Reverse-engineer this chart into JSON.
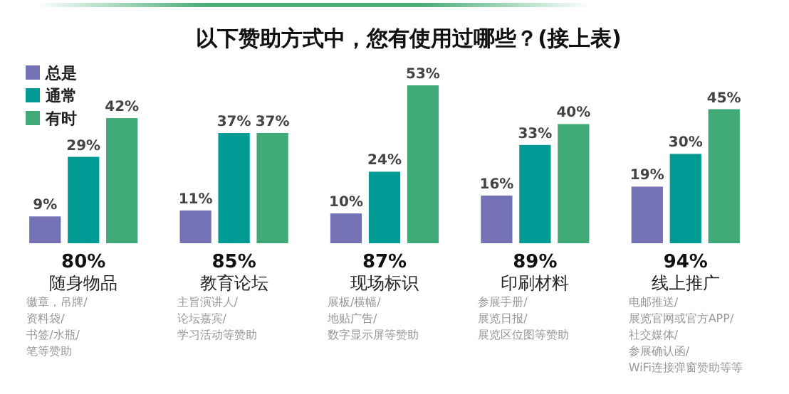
{
  "chart_data": {
    "type": "bar",
    "title": "以下赞助方式中，您有使用过哪些？(接上表)",
    "categories": [
      "随身物品",
      "教育论坛",
      "现场标识",
      "印刷材料",
      "线上推广"
    ],
    "series": [
      {
        "name": "总是",
        "color": "#7472b5",
        "values": [
          9,
          11,
          10,
          16,
          19
        ],
        "value_labels": [
          "9%",
          "11%",
          "10%",
          "16%",
          "19%"
        ]
      },
      {
        "name": "通常",
        "color": "#009b95",
        "values": [
          29,
          37,
          24,
          33,
          30
        ],
        "value_labels": [
          "29%",
          "37%",
          "24%",
          "33%",
          "30%"
        ]
      },
      {
        "name": "有时",
        "color": "#3fa977",
        "values": [
          42,
          37,
          53,
          40,
          45
        ],
        "value_labels": [
          "42%",
          "37%",
          "53%",
          "40%",
          "45%"
        ]
      }
    ],
    "legend": "top left",
    "annotations": [
      "80%",
      "85%",
      "87%",
      "89%",
      "94%",
      "徽章，吊牌/\n资料袋/\n书签/水瓶/\n笔等赞助",
      "主旨演讲人/\n论坛嘉宾/\n学习活动等赞助",
      "展板/横幅/\n地贴广告/\n数字显示屏等赞助",
      "参展手册/\n展览日报/\n展览区位图等赞助",
      "电邮推送/\n展览官网或官方APP/\n社交媒体/\n参展确认函/\nWiFi连接弹窗赞助等等"
    ]
  }
}
